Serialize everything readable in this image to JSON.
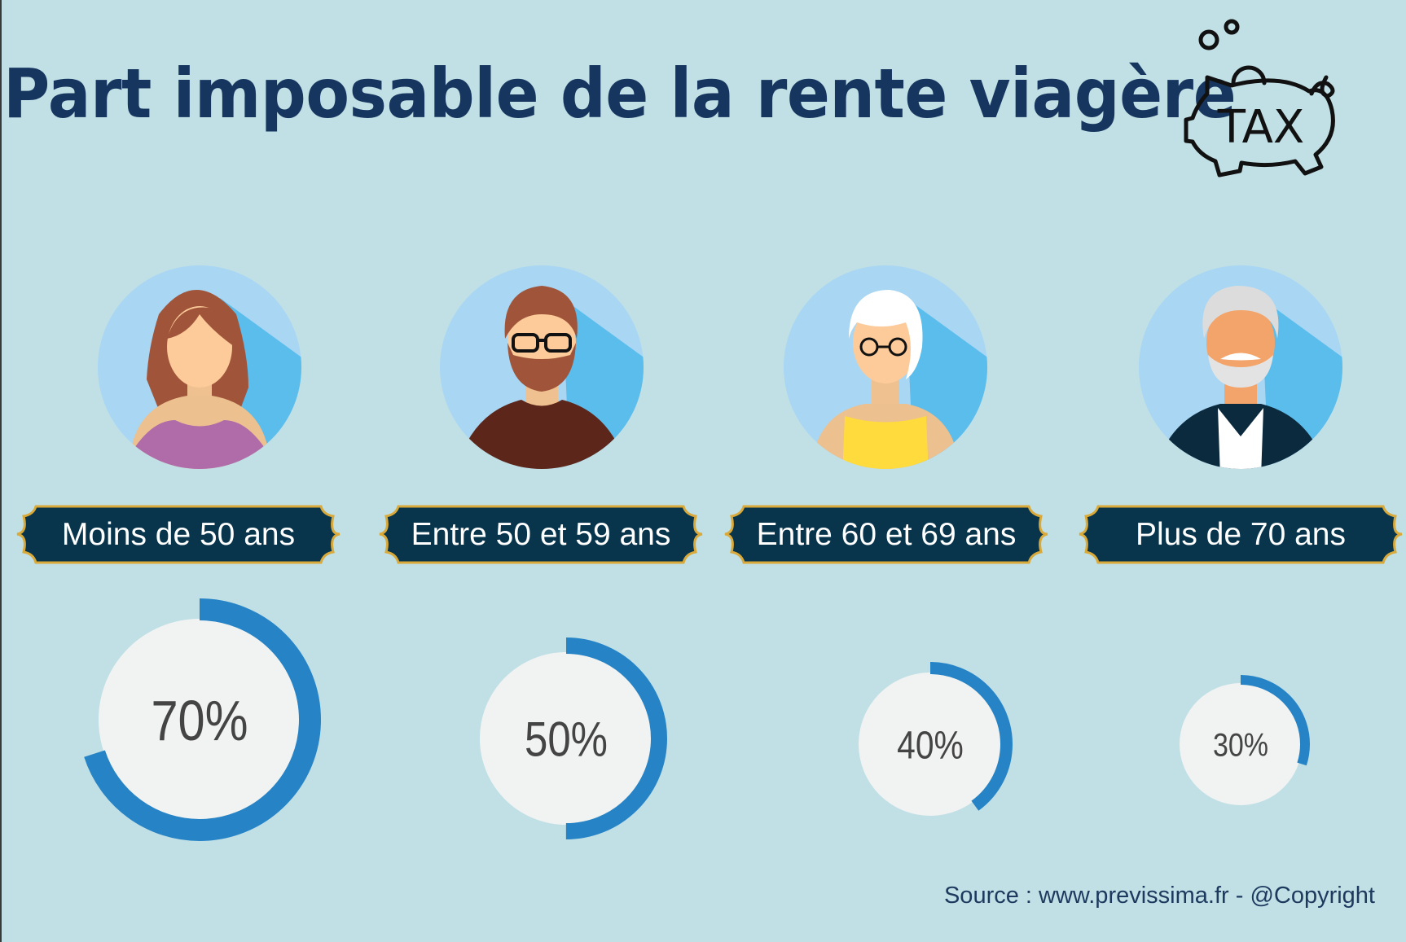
{
  "title": "Part imposable de la rente viagère",
  "icon": {
    "name": "piggy-bank-tax-icon",
    "text": "TAX"
  },
  "colors": {
    "background": "#c1e0e6",
    "title": "#17365f",
    "banner": "#08354c",
    "banner_border": "#d9a93a",
    "ring": "#2683c6",
    "disk": "#f1f3f2",
    "avatar_bg": "#a9d6f3",
    "avatar_shadow": "#5bbdec"
  },
  "groups": [
    {
      "label": "Moins de 50 ans",
      "percent_label": "70%",
      "avatar": "young-woman"
    },
    {
      "label": "Entre 50 et 59 ans",
      "percent_label": "50%",
      "avatar": "bearded-man-glasses"
    },
    {
      "label": "Entre 60 et 69 ans",
      "percent_label": "40%",
      "avatar": "older-woman-glasses"
    },
    {
      "label": "Plus de 70 ans",
      "percent_label": "30%",
      "avatar": "elderly-man-mustache"
    }
  ],
  "chart_data": {
    "type": "pie",
    "style": "donut-progress",
    "title": "Part imposable de la rente viagère",
    "categories": [
      "Moins de 50 ans",
      "Entre 50 et 59 ans",
      "Entre 60 et 69 ans",
      "Plus de 70 ans"
    ],
    "values": [
      70,
      50,
      40,
      30
    ],
    "unit": "%"
  },
  "source": "Source : www.previssima.fr - @Copyright"
}
